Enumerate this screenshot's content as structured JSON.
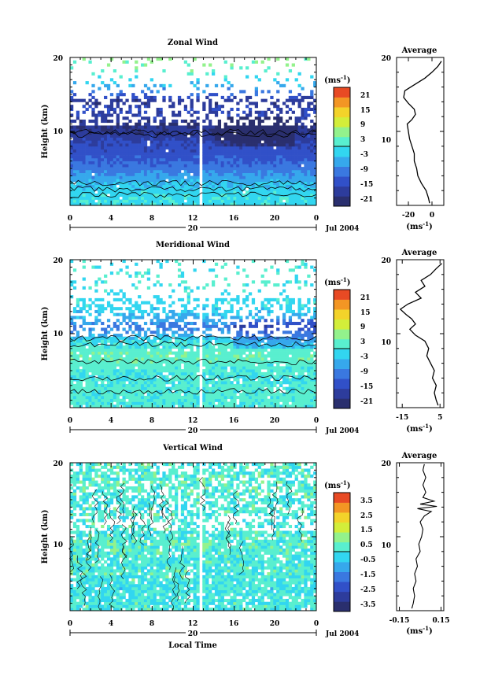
{
  "chart_data": [
    {
      "type": "heatmap",
      "name": "zonal",
      "title": "Zonal Wind",
      "xlabel": "",
      "ylabel": "Height (km)",
      "xlim": [
        0,
        24
      ],
      "ylim": [
        0,
        20
      ],
      "x_ticks": [
        "0",
        "4",
        "8",
        "12",
        "16",
        "20",
        "0"
      ],
      "y_ticks": [
        "10",
        "20"
      ],
      "date_axis": {
        "mid_label": "20",
        "date_label": "Jul 2004"
      },
      "colorbar": {
        "unit": "(ms",
        "unit_exp": "-1",
        "unit_close": ")",
        "ticks": [
          "21",
          "15",
          "9",
          "3",
          "-3",
          "-9",
          "-15",
          "-21"
        ],
        "range": [
          -24,
          24
        ]
      },
      "height_profile": [
        {
          "y": 1,
          "v": -1
        },
        {
          "y": 2,
          "v": -2
        },
        {
          "y": 3,
          "v": -4
        },
        {
          "y": 4,
          "v": -7
        },
        {
          "y": 5,
          "v": -10
        },
        {
          "y": 6,
          "v": -12
        },
        {
          "y": 7,
          "v": -14
        },
        {
          "y": 8,
          "v": -15
        },
        {
          "y": 9,
          "v": -17
        },
        {
          "y": 10,
          "v": -19
        },
        {
          "y": 11,
          "v": -20
        },
        {
          "y": 12,
          "v": -17
        },
        {
          "y": 13,
          "v": -15
        },
        {
          "y": 14,
          "v": -20
        },
        {
          "y": 15,
          "v": -12
        },
        {
          "y": 16,
          "v": -6
        },
        {
          "y": 17,
          "v": -2
        },
        {
          "y": 18,
          "v": 2
        },
        {
          "y": 19,
          "v": 5
        }
      ],
      "average": {
        "title": "Average",
        "xlim": [
          -30,
          10
        ],
        "x_ticks": [
          {
            "v": -20,
            "label": "-20"
          },
          {
            "v": 0,
            "label": "0"
          }
        ],
        "ylim": [
          0,
          20
        ],
        "y_ticks": [
          "10",
          "20"
        ],
        "unit": "(ms",
        "unit_exp": "-1",
        "unit_close": ")",
        "profile": [
          {
            "y": 0.3,
            "v": -2
          },
          {
            "y": 1,
            "v": -3
          },
          {
            "y": 2,
            "v": -5
          },
          {
            "y": 3,
            "v": -9
          },
          {
            "y": 4,
            "v": -12
          },
          {
            "y": 5,
            "v": -13
          },
          {
            "y": 6,
            "v": -15
          },
          {
            "y": 7,
            "v": -15
          },
          {
            "y": 8,
            "v": -17
          },
          {
            "y": 9,
            "v": -19
          },
          {
            "y": 10,
            "v": -20
          },
          {
            "y": 11,
            "v": -21
          },
          {
            "y": 11.6,
            "v": -17
          },
          {
            "y": 12.3,
            "v": -14
          },
          {
            "y": 13,
            "v": -15
          },
          {
            "y": 13.8,
            "v": -20
          },
          {
            "y": 14.6,
            "v": -24
          },
          {
            "y": 15.5,
            "v": -23
          },
          {
            "y": 16.4,
            "v": -14
          },
          {
            "y": 17.2,
            "v": -6
          },
          {
            "y": 18,
            "v": 0
          },
          {
            "y": 18.8,
            "v": 5
          },
          {
            "y": 19.5,
            "v": 8
          }
        ]
      }
    },
    {
      "type": "heatmap",
      "name": "meridional",
      "title": "Meridional Wind",
      "xlabel": "",
      "ylabel": "Height (km)",
      "xlim": [
        0,
        24
      ],
      "ylim": [
        0,
        20
      ],
      "x_ticks": [
        "0",
        "4",
        "8",
        "12",
        "16",
        "20",
        "0"
      ],
      "y_ticks": [
        "10",
        "20"
      ],
      "date_axis": {
        "mid_label": "20",
        "date_label": "Jul 2004"
      },
      "colorbar": {
        "unit": "(ms",
        "unit_exp": "-1",
        "unit_close": ")",
        "ticks": [
          "21",
          "15",
          "9",
          "3",
          "-3",
          "-9",
          "-15",
          "-21"
        ],
        "range": [
          -24,
          24
        ]
      },
      "height_profile": [
        {
          "y": 1,
          "v": 1
        },
        {
          "y": 2,
          "v": 1
        },
        {
          "y": 3,
          "v": 1
        },
        {
          "y": 4,
          "v": 0
        },
        {
          "y": 5,
          "v": 1
        },
        {
          "y": 6,
          "v": 2
        },
        {
          "y": 7,
          "v": 3
        },
        {
          "y": 8,
          "v": 2
        },
        {
          "y": 9,
          "v": -1
        },
        {
          "y": 10,
          "v": -6
        },
        {
          "y": 11,
          "v": -10
        },
        {
          "y": 12,
          "v": -5
        },
        {
          "y": 13,
          "v": -3
        },
        {
          "y": 14,
          "v": -1
        },
        {
          "y": 15,
          "v": -2
        },
        {
          "y": 16,
          "v": 0
        },
        {
          "y": 17,
          "v": 0
        },
        {
          "y": 18,
          "v": 0
        },
        {
          "y": 19,
          "v": 0
        }
      ],
      "average": {
        "title": "Average",
        "xlim": [
          -18,
          7
        ],
        "x_ticks": [
          {
            "v": -15,
            "label": "-15"
          },
          {
            "v": 5,
            "label": "5"
          }
        ],
        "ylim": [
          0,
          20
        ],
        "y_ticks": [
          "10",
          "20"
        ],
        "unit": "(ms",
        "unit_exp": "-1",
        "unit_close": ")",
        "profile": [
          {
            "y": 0.3,
            "v": 4
          },
          {
            "y": 1,
            "v": 3
          },
          {
            "y": 2,
            "v": 2
          },
          {
            "y": 3,
            "v": 3
          },
          {
            "y": 4,
            "v": 1
          },
          {
            "y": 5,
            "v": 2
          },
          {
            "y": 6,
            "v": 0
          },
          {
            "y": 7,
            "v": -2
          },
          {
            "y": 8,
            "v": -1
          },
          {
            "y": 9,
            "v": -3
          },
          {
            "y": 9.8,
            "v": -8
          },
          {
            "y": 10.6,
            "v": -11
          },
          {
            "y": 11.3,
            "v": -8
          },
          {
            "y": 12,
            "v": -10
          },
          {
            "y": 12.6,
            "v": -13
          },
          {
            "y": 13.3,
            "v": -16
          },
          {
            "y": 14,
            "v": -12
          },
          {
            "y": 14.8,
            "v": -5
          },
          {
            "y": 15.6,
            "v": -8
          },
          {
            "y": 16.4,
            "v": -3
          },
          {
            "y": 17.2,
            "v": -5
          },
          {
            "y": 18,
            "v": 0
          },
          {
            "y": 18.8,
            "v": 3
          },
          {
            "y": 19.5,
            "v": 6
          }
        ]
      }
    },
    {
      "type": "heatmap",
      "name": "vertical",
      "title": "Vertical Wind",
      "xlabel": "Local Time",
      "ylabel": "Height (km)",
      "xlim": [
        0,
        24
      ],
      "ylim": [
        0,
        20
      ],
      "x_ticks": [
        "0",
        "4",
        "8",
        "12",
        "16",
        "20",
        "0"
      ],
      "y_ticks": [
        "10",
        "20"
      ],
      "date_axis": {
        "mid_label": "20",
        "date_label": "Jul 2004"
      },
      "colorbar": {
        "unit": "(ms",
        "unit_exp": "-1",
        "unit_close": ")",
        "ticks": [
          "3.5",
          "2.5",
          "1.5",
          "0.5",
          "-0.5",
          "-1.5",
          "-2.5",
          "-3.5"
        ],
        "range": [
          -4,
          4
        ]
      },
      "height_profile": [
        {
          "y": 1,
          "v": 0.1
        },
        {
          "y": 3,
          "v": -0.1
        },
        {
          "y": 5,
          "v": 0.2
        },
        {
          "y": 7,
          "v": 0.1
        },
        {
          "y": 9,
          "v": 0.3
        },
        {
          "y": 11,
          "v": 0.1
        },
        {
          "y": 13,
          "v": 0.2
        },
        {
          "y": 15,
          "v": 0.1
        },
        {
          "y": 17,
          "v": 0.3
        },
        {
          "y": 19,
          "v": 0.2
        }
      ],
      "average": {
        "title": "Average",
        "xlim": [
          -0.17,
          0.17
        ],
        "x_ticks": [
          {
            "v": -0.15,
            "label": "-0.15"
          },
          {
            "v": 0.15,
            "label": "0.15"
          }
        ],
        "ylim": [
          0,
          20
        ],
        "y_ticks": [
          "10",
          "20"
        ],
        "unit": "(ms",
        "unit_exp": "-1",
        "unit_close": ")",
        "profile": [
          {
            "y": 0.3,
            "v": -0.06
          },
          {
            "y": 1,
            "v": -0.05
          },
          {
            "y": 2,
            "v": -0.04
          },
          {
            "y": 3,
            "v": -0.05
          },
          {
            "y": 4,
            "v": -0.03
          },
          {
            "y": 5,
            "v": -0.04
          },
          {
            "y": 6,
            "v": -0.02
          },
          {
            "y": 7,
            "v": -0.03
          },
          {
            "y": 8,
            "v": 0.0
          },
          {
            "y": 9,
            "v": -0.01
          },
          {
            "y": 10,
            "v": 0.01
          },
          {
            "y": 11,
            "v": 0.02
          },
          {
            "y": 12,
            "v": 0.0
          },
          {
            "y": 12.8,
            "v": 0.03
          },
          {
            "y": 13.4,
            "v": 0.08
          },
          {
            "y": 13.8,
            "v": -0.02
          },
          {
            "y": 14.1,
            "v": 0.12
          },
          {
            "y": 14.4,
            "v": 0.0
          },
          {
            "y": 14.8,
            "v": 0.1
          },
          {
            "y": 15.3,
            "v": 0.02
          },
          {
            "y": 16,
            "v": 0.04
          },
          {
            "y": 17,
            "v": 0.02
          },
          {
            "y": 18,
            "v": 0.04
          },
          {
            "y": 19,
            "v": 0.02
          },
          {
            "y": 19.8,
            "v": 0.03
          }
        ]
      }
    }
  ]
}
